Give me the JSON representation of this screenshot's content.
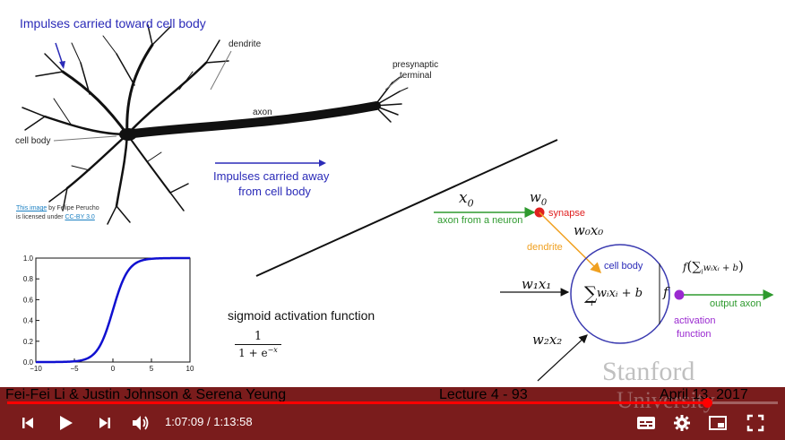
{
  "slide": {
    "neuron_caption_top": "Impulses carried toward cell body",
    "label_dendrite": "dendrite",
    "label_presynaptic_1": "presynaptic",
    "label_presynaptic_2": "terminal",
    "label_axon": "axon",
    "label_cell_body": "cell body",
    "caption_away_1": "Impulses carried away",
    "caption_away_2": "from cell body",
    "credit_link1": "This image",
    "credit_text1": " by Felipe Perucho",
    "credit_text2": "is licensed under ",
    "credit_link2": "CC-BY 3.0",
    "sigmoid_title": "sigmoid activation function",
    "sigmoid_num": "1",
    "sigmoid_den": "1 + e",
    "sigmoid_exp": "−x",
    "model": {
      "x0": "x",
      "x0_sub": "0",
      "w0": "w",
      "w0_sub": "0",
      "w0x0": "w₀x₀",
      "axon_from_neuron": "axon from a neuron",
      "synapse": "synapse",
      "dendrite": "dendrite",
      "cell_body": "cell body",
      "w1x1": "w₁x₁",
      "w2x2": "w₂x₂",
      "sum_expr": "wᵢxᵢ + b",
      "sum_sub": "i",
      "f": "f",
      "output_expr": "f",
      "output_axon": "output axon",
      "activation_1": "activation",
      "activation_2": "function"
    },
    "colors": {
      "caption_blue": "#2b2bb8",
      "green": "#2e9a2e",
      "orange": "#f0a020",
      "red": "#e02020",
      "purple": "#9a2ad0"
    }
  },
  "chart_data": {
    "type": "line",
    "series": [
      {
        "function": "sigmoid",
        "x": [
          -10,
          -8,
          -6,
          -5,
          -4,
          -3,
          -2,
          -1,
          0,
          1,
          2,
          3,
          4,
          5,
          6,
          8,
          10
        ],
        "y": [
          0.0,
          0.0003,
          0.0025,
          0.0067,
          0.018,
          0.047,
          0.119,
          0.269,
          0.5,
          0.731,
          0.881,
          0.953,
          0.982,
          0.993,
          0.9975,
          0.9997,
          1.0
        ]
      }
    ],
    "xlim": [
      -10,
      10
    ],
    "ylim": [
      0,
      1
    ],
    "xticks": [
      "−10",
      "−5",
      "0",
      "5",
      "10"
    ],
    "yticks": [
      "0.0",
      "0.2",
      "0.4",
      "0.6",
      "0.8",
      "1.0"
    ],
    "xtick_values": [
      -10,
      -5,
      0,
      5,
      10
    ],
    "ytick_values": [
      0,
      0.2,
      0.4,
      0.6,
      0.8,
      1.0
    ],
    "line_color": "#1010d0",
    "grid": false
  },
  "footer": {
    "authors": "Fei-Fei Li & Justin Johnson & Serena Yeung",
    "lecture": "Lecture 4 - 93",
    "date": "April 13, 2017",
    "watermark_1": "Stanford",
    "watermark_2": "University"
  },
  "player": {
    "current_time": "1:07:09",
    "separator": " / ",
    "duration": "1:13:58",
    "progress_fraction": 0.908,
    "icons": [
      "skip-previous-icon",
      "play-icon",
      "skip-next-icon",
      "volume-icon",
      "captions-icon",
      "gear-icon",
      "miniplayer-icon",
      "fullscreen-icon"
    ]
  }
}
